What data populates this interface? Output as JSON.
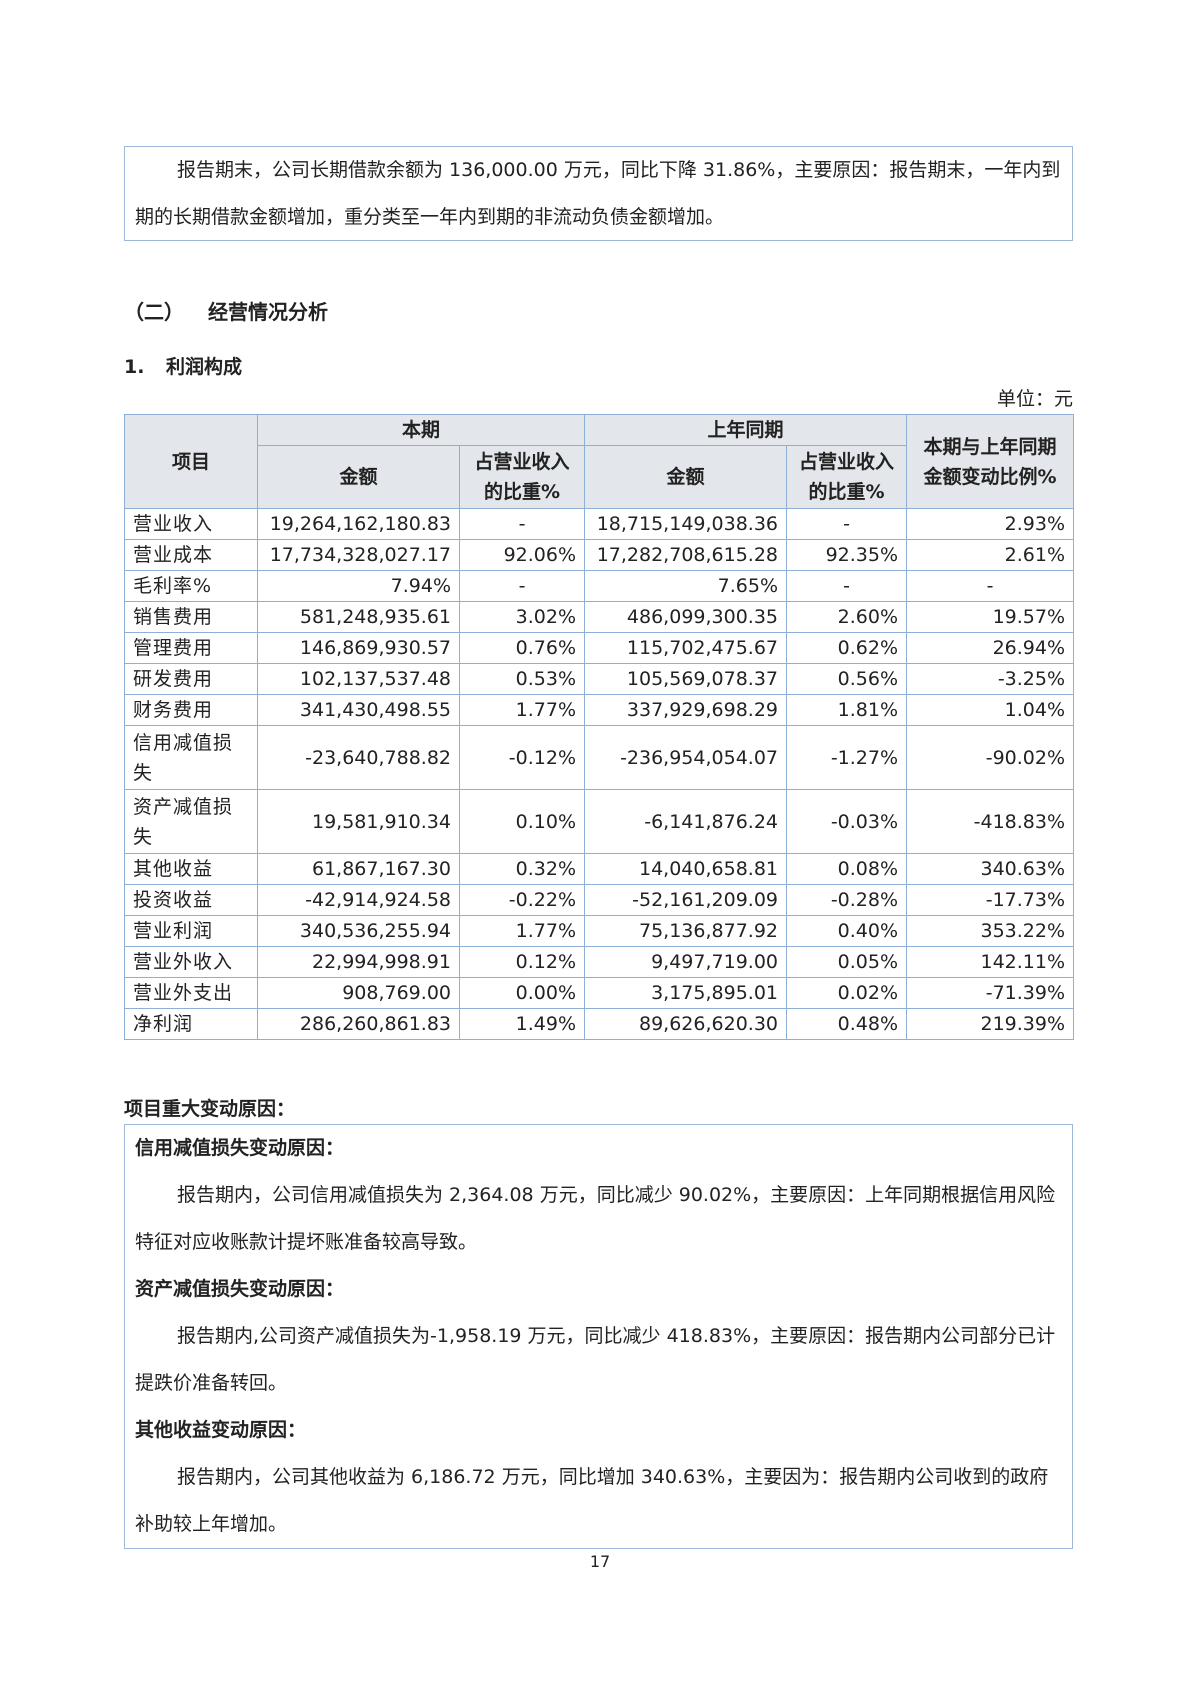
{
  "intro_box": {
    "text": "报告期末，公司长期借款余额为 136,000.00 万元，同比下降 31.86%，主要原因：报告期末，一年内到期的长期借款金额增加，重分类至一年内到期的非流动负债金额增加。"
  },
  "section": {
    "number": "（二）",
    "title": "经营情况分析"
  },
  "subsection": {
    "number": "1.",
    "title": "利润构成"
  },
  "unit": "单位：元",
  "table": {
    "headers": {
      "item": "项目",
      "current": "本期",
      "prior": "上年同期",
      "change": "本期与上年同期金额变动比例%",
      "amount": "金额",
      "ratio": "占营业收入的比重%"
    },
    "rows": [
      [
        "营业收入",
        "19,264,162,180.83",
        "-",
        "18,715,149,038.36",
        "-",
        "2.93%"
      ],
      [
        "营业成本",
        "17,734,328,027.17",
        "92.06%",
        "17,282,708,615.28",
        "92.35%",
        "2.61%"
      ],
      [
        "毛利率%",
        "7.94%",
        "-",
        "7.65%",
        "-",
        "-"
      ],
      [
        "销售费用",
        "581,248,935.61",
        "3.02%",
        "486,099,300.35",
        "2.60%",
        "19.57%"
      ],
      [
        "管理费用",
        "146,869,930.57",
        "0.76%",
        "115,702,475.67",
        "0.62%",
        "26.94%"
      ],
      [
        "研发费用",
        "102,137,537.48",
        "0.53%",
        "105,569,078.37",
        "0.56%",
        "-3.25%"
      ],
      [
        "财务费用",
        "341,430,498.55",
        "1.77%",
        "337,929,698.29",
        "1.81%",
        "1.04%"
      ],
      [
        "信用减值损失",
        "-23,640,788.82",
        "-0.12%",
        "-236,954,054.07",
        "-1.27%",
        "-90.02%"
      ],
      [
        "资产减值损失",
        "19,581,910.34",
        "0.10%",
        "-6,141,876.24",
        "-0.03%",
        "-418.83%"
      ],
      [
        "其他收益",
        "61,867,167.30",
        "0.32%",
        "14,040,658.81",
        "0.08%",
        "340.63%"
      ],
      [
        "投资收益",
        "-42,914,924.58",
        "-0.22%",
        "-52,161,209.09",
        "-0.28%",
        "-17.73%"
      ],
      [
        "营业利润",
        "340,536,255.94",
        "1.77%",
        "75,136,877.92",
        "0.40%",
        "353.22%"
      ],
      [
        "营业外收入",
        "22,994,998.91",
        "0.12%",
        "9,497,719.00",
        "0.05%",
        "142.11%"
      ],
      [
        "营业外支出",
        "908,769.00",
        "0.00%",
        "3,175,895.01",
        "0.02%",
        "-71.39%"
      ],
      [
        "净利润",
        "286,260,861.83",
        "1.49%",
        "89,626,620.30",
        "0.48%",
        "219.39%"
      ]
    ]
  },
  "reasons": {
    "title": "项目重大变动原因：",
    "items": [
      {
        "heading": "信用减值损失变动原因：",
        "text": "报告期内，公司信用减值损失为 2,364.08 万元，同比减少 90.02%，主要原因：上年同期根据信用风险特征对应收账款计提坏账准备较高导致。"
      },
      {
        "heading": "资产减值损失变动原因：",
        "text": "报告期内,公司资产减值损失为-1,958.19 万元，同比减少 418.83%，主要原因：报告期内公司部分已计提跌价准备转回。"
      },
      {
        "heading": "其他收益变动原因：",
        "text": "报告期内，公司其他收益为 6,186.72 万元，同比增加 340.63%，主要因为：报告期内公司收到的政府补助较上年增加。"
      }
    ]
  },
  "page_number": "17",
  "colors": {
    "border": "#8fb0d6",
    "header_bg": "#e3e6ea"
  }
}
